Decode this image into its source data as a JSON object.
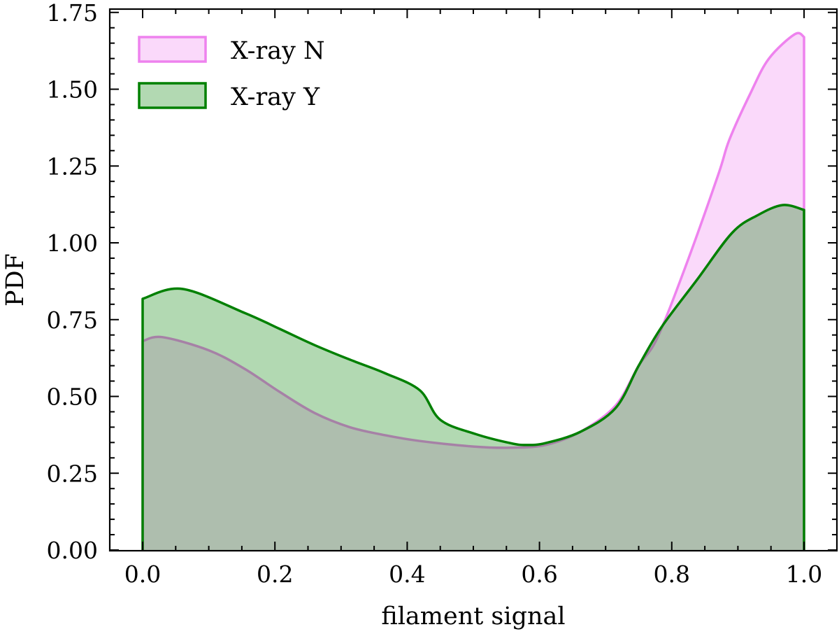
{
  "chart_data": {
    "type": "area",
    "title": "",
    "xlabel": "filament signal",
    "ylabel": "PDF",
    "xlim": [
      -0.05,
      1.05
    ],
    "ylim": [
      0.0,
      1.75
    ],
    "xticks": [
      0.0,
      0.2,
      0.4,
      0.6,
      0.8,
      1.0
    ],
    "xtick_labels": [
      "0.0",
      "0.2",
      "0.4",
      "0.6",
      "0.8",
      "1.0"
    ],
    "yticks": [
      0.0,
      0.25,
      0.5,
      0.75,
      1.0,
      1.25,
      1.5,
      1.75
    ],
    "ytick_labels": [
      "0.00",
      "0.25",
      "0.50",
      "0.75",
      "1.00",
      "1.25",
      "1.50",
      "1.75"
    ],
    "x_minor_step": 0.05,
    "y_minor_step": 0.05,
    "grid": false,
    "legend_position": "upper left",
    "series": [
      {
        "name": "X-ray N",
        "edge_color": "#ee82ee",
        "fill_color": "#ee82ee",
        "fill_alpha": 0.3,
        "x": [
          0.0,
          0.03,
          0.1,
          0.154,
          0.207,
          0.26,
          0.313,
          0.366,
          0.419,
          0.5,
          0.556,
          0.609,
          0.662,
          0.715,
          0.75,
          0.778,
          0.82,
          0.87,
          0.887,
          0.919,
          0.947,
          0.986,
          1.0
        ],
        "y": [
          0.68,
          0.693,
          0.65,
          0.59,
          0.515,
          0.446,
          0.4,
          0.374,
          0.355,
          0.337,
          0.333,
          0.342,
          0.385,
          0.47,
          0.6,
          0.69,
          0.918,
          1.22,
          1.335,
          1.487,
          1.6,
          1.679,
          1.67
        ]
      },
      {
        "name": "X-ray Y",
        "edge_color": "#008000",
        "fill_color": "#008000",
        "fill_alpha": 0.3,
        "x": [
          0.0,
          0.06,
          0.154,
          0.207,
          0.26,
          0.313,
          0.366,
          0.419,
          0.45,
          0.503,
          0.556,
          0.58,
          0.609,
          0.662,
          0.715,
          0.75,
          0.785,
          0.838,
          0.891,
          0.93,
          0.968,
          1.0
        ],
        "y": [
          0.818,
          0.85,
          0.772,
          0.72,
          0.667,
          0.62,
          0.576,
          0.52,
          0.424,
          0.378,
          0.348,
          0.342,
          0.348,
          0.385,
          0.462,
          0.6,
          0.727,
          0.879,
          1.032,
          1.09,
          1.123,
          1.107
        ]
      }
    ]
  }
}
